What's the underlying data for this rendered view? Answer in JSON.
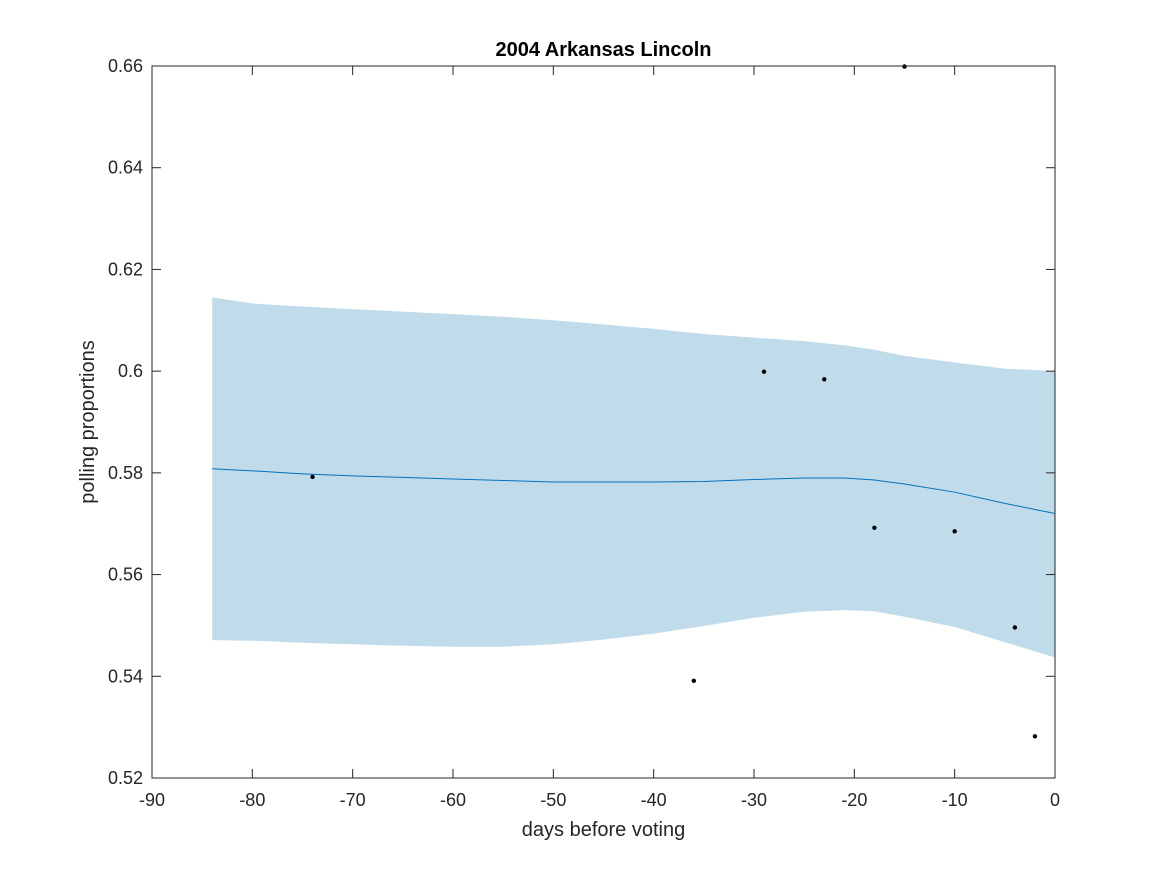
{
  "chart_data": {
    "type": "line",
    "title": "2004 Arkansas Lincoln",
    "xlabel": "days before voting",
    "ylabel": "polling proportions",
    "xlim": [
      -90,
      0
    ],
    "ylim": [
      0.52,
      0.66
    ],
    "xticks": [
      -90,
      -80,
      -70,
      -60,
      -50,
      -40,
      -30,
      -20,
      -10,
      0
    ],
    "xtick_labels": [
      "-90",
      "-80",
      "-70",
      "-60",
      "-50",
      "-40",
      "-30",
      "-20",
      "-10",
      "0"
    ],
    "yticks": [
      0.52,
      0.54,
      0.56,
      0.58,
      0.6,
      0.62,
      0.64,
      0.66
    ],
    "ytick_labels": [
      "0.52",
      "0.54",
      "0.56",
      "0.58",
      "0.6",
      "0.62",
      "0.64",
      "0.66"
    ],
    "grid": false,
    "colors": {
      "line": "#0072bd",
      "band": "#c0dcea",
      "points": "#000000",
      "axes": "#262626"
    },
    "band": {
      "x": [
        -84,
        -80,
        -75,
        -70,
        -65,
        -60,
        -55,
        -50,
        -45,
        -40,
        -35,
        -30,
        -25,
        -21,
        -18,
        -15,
        -10,
        -5,
        0
      ],
      "upper": [
        0.6145,
        0.6133,
        0.6127,
        0.6122,
        0.6117,
        0.6112,
        0.6107,
        0.61,
        0.6092,
        0.6083,
        0.6073,
        0.6066,
        0.6059,
        0.6051,
        0.6042,
        0.603,
        0.6017,
        0.6005,
        0.6
      ],
      "lower": [
        0.5471,
        0.547,
        0.5466,
        0.5463,
        0.546,
        0.5458,
        0.5458,
        0.5463,
        0.5472,
        0.5484,
        0.5499,
        0.5515,
        0.5527,
        0.553,
        0.5528,
        0.5517,
        0.5497,
        0.5467,
        0.5437
      ]
    },
    "series": [
      {
        "x": [
          -84,
          -80,
          -75,
          -70,
          -65,
          -60,
          -55,
          -50,
          -45,
          -40,
          -35,
          -30,
          -25,
          -21,
          -18,
          -15,
          -10,
          -5,
          0
        ],
        "values": [
          0.5808,
          0.5804,
          0.5798,
          0.5794,
          0.5791,
          0.5788,
          0.5785,
          0.5782,
          0.5782,
          0.5782,
          0.5783,
          0.5787,
          0.579,
          0.579,
          0.5786,
          0.5778,
          0.5762,
          0.574,
          0.572
        ]
      }
    ],
    "points": {
      "x": [
        -74,
        -36,
        -29,
        -23,
        -18,
        -15,
        -10,
        -4,
        -2
      ],
      "y": [
        0.5792,
        0.5391,
        0.5999,
        0.5984,
        0.5692,
        0.6599,
        0.5685,
        0.5496,
        0.5282
      ]
    }
  }
}
